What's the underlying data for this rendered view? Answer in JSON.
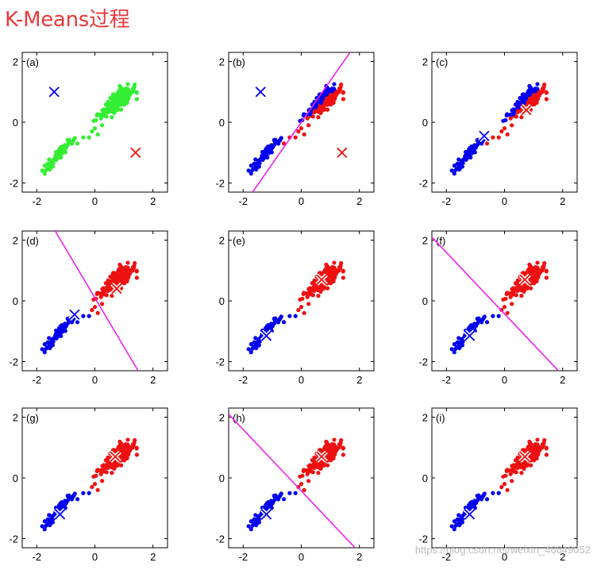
{
  "title": "K-Means过程",
  "watermark": "https://blog.csdn.net/weixin_46649052",
  "colors": {
    "unassigned": "#33ee33",
    "cluster_1": "#0000ee",
    "cluster_2": "#ee1111",
    "boundary": "#ee22ee",
    "title": "#e83a3a"
  },
  "chart_data": [
    {
      "label": "(a)",
      "type": "scatter",
      "points_state": "unassigned",
      "centroids": [
        [
          -1.4,
          1.0
        ],
        [
          1.4,
          -1.0
        ]
      ],
      "centroid_colors": [
        "cluster_1",
        "cluster_2"
      ],
      "centroid_style": "cross",
      "boundary": null,
      "xlim": [
        -2.5,
        2.5
      ],
      "ylim": [
        -2.3,
        2.3
      ],
      "xticks": [
        "-2",
        "0",
        "2"
      ],
      "yticks": [
        "2",
        "0",
        "-2"
      ]
    },
    {
      "label": "(b)",
      "type": "scatter",
      "points_state": "assigned_initial",
      "centroids": [
        [
          -1.4,
          1.0
        ],
        [
          1.4,
          -1.0
        ]
      ],
      "centroid_colors": [
        "cluster_1",
        "cluster_2"
      ],
      "centroid_style": "cross",
      "boundary": [
        [
          -1.75,
          -2.4
        ],
        [
          1.75,
          2.4
        ]
      ],
      "xlim": [
        -2.5,
        2.5
      ],
      "ylim": [
        -2.3,
        2.3
      ],
      "xticks": [
        "-2",
        "0",
        "2"
      ],
      "yticks": [
        "2",
        "0",
        "-2"
      ]
    },
    {
      "label": "(c)",
      "type": "scatter",
      "points_state": "assigned_initial",
      "centroids": [
        [
          -0.7,
          -0.45
        ],
        [
          0.75,
          0.4
        ]
      ],
      "centroid_colors": [
        "cluster_1",
        "cluster_2"
      ],
      "centroid_style": "cross_white",
      "boundary": null,
      "xlim": [
        -2.5,
        2.5
      ],
      "ylim": [
        -2.3,
        2.3
      ],
      "xticks": [
        "-2",
        "0",
        "2"
      ],
      "yticks": [
        "2",
        "0",
        "-2"
      ]
    },
    {
      "label": "(d)",
      "type": "scatter",
      "points_state": "assigned_second",
      "centroids": [
        [
          -0.7,
          -0.45
        ],
        [
          0.75,
          0.4
        ]
      ],
      "centroid_colors": [
        "cluster_1",
        "cluster_2"
      ],
      "centroid_style": "cross_white",
      "boundary": [
        [
          -1.55,
          2.6
        ],
        [
          1.55,
          -2.4
        ]
      ],
      "xlim": [
        -2.5,
        2.5
      ],
      "ylim": [
        -2.3,
        2.3
      ],
      "xticks": [
        "-2",
        "0",
        "2"
      ],
      "yticks": [
        "2",
        "0",
        "-2"
      ]
    },
    {
      "label": "(e)",
      "type": "scatter",
      "points_state": "assigned_second",
      "centroids": [
        [
          -1.2,
          -1.15
        ],
        [
          0.7,
          0.7
        ]
      ],
      "centroid_colors": [
        "cluster_1",
        "cluster_2"
      ],
      "centroid_style": "cross_white",
      "boundary": null,
      "xlim": [
        -2.5,
        2.5
      ],
      "ylim": [
        -2.3,
        2.3
      ],
      "xticks": [
        "-2",
        "0",
        "2"
      ],
      "yticks": [
        "2",
        "0",
        "-2"
      ]
    },
    {
      "label": "(f)",
      "type": "scatter",
      "points_state": "assigned_final",
      "centroids": [
        [
          -1.2,
          -1.15
        ],
        [
          0.7,
          0.7
        ]
      ],
      "centroid_colors": [
        "cluster_1",
        "cluster_2"
      ],
      "centroid_style": "cross_white",
      "boundary": [
        [
          -2.5,
          2.1
        ],
        [
          1.95,
          -2.4
        ]
      ],
      "xlim": [
        -2.5,
        2.5
      ],
      "ylim": [
        -2.3,
        2.3
      ],
      "xticks": [
        "-2",
        "0",
        "2"
      ],
      "yticks": [
        "2",
        "0",
        "-2"
      ]
    },
    {
      "label": "(g)",
      "type": "scatter",
      "points_state": "assigned_final",
      "centroids": [
        [
          -1.2,
          -1.2
        ],
        [
          0.7,
          0.7
        ]
      ],
      "centroid_colors": [
        "cluster_1",
        "cluster_2"
      ],
      "centroid_style": "cross_white",
      "boundary": null,
      "xlim": [
        -2.5,
        2.5
      ],
      "ylim": [
        -2.3,
        2.3
      ],
      "xticks": [
        "-2",
        "0",
        "2"
      ],
      "yticks": [
        "2",
        "0",
        "-2"
      ]
    },
    {
      "label": "(h)",
      "type": "scatter",
      "points_state": "assigned_final",
      "centroids": [
        [
          -1.2,
          -1.2
        ],
        [
          0.7,
          0.7
        ]
      ],
      "centroid_colors": [
        "cluster_1",
        "cluster_2"
      ],
      "centroid_style": "cross_white",
      "boundary": [
        [
          -2.5,
          2.1
        ],
        [
          1.95,
          -2.4
        ]
      ],
      "xlim": [
        -2.5,
        2.5
      ],
      "ylim": [
        -2.3,
        2.3
      ],
      "xticks": [
        "-2",
        "0",
        "2"
      ],
      "yticks": [
        "2",
        "0",
        "-2"
      ]
    },
    {
      "label": "(i)",
      "type": "scatter",
      "points_state": "assigned_final",
      "centroids": [
        [
          -1.2,
          -1.2
        ],
        [
          0.7,
          0.7
        ]
      ],
      "centroid_colors": [
        "cluster_1",
        "cluster_2"
      ],
      "centroid_style": "cross_white",
      "boundary": null,
      "xlim": [
        -2.5,
        2.5
      ],
      "ylim": [
        -2.3,
        2.3
      ],
      "xticks": [
        "-2",
        "0",
        "2"
      ],
      "yticks": [
        "2",
        "0",
        "-2"
      ]
    }
  ]
}
